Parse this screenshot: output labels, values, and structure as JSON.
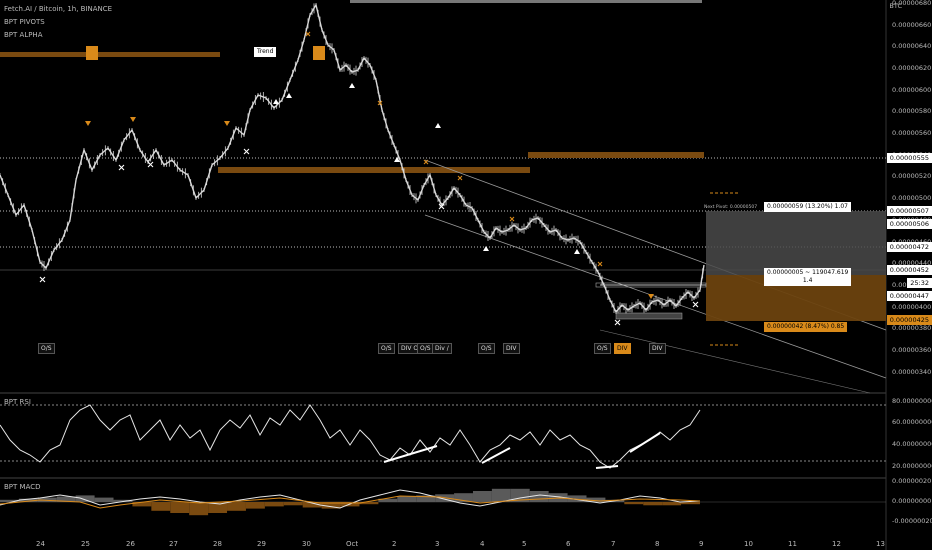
{
  "header": {
    "symbol": "Fetch.AI / Bitcoin, 1h, BINANCE",
    "indicator_1": "BPT PIVOTS",
    "indicator_2": "BPT ALPHA"
  },
  "price_axis": {
    "currency": "BTC",
    "labels": [
      "0.00000680",
      "0.00000660",
      "0.00000640",
      "0.00000620",
      "0.00000600",
      "0.00000580",
      "0.00000560",
      "0.00000540",
      "0.00000520",
      "0.00000500",
      "0.00000480",
      "0.00000460",
      "0.00000440",
      "0.00000420",
      "0.00000400",
      "0.00000380",
      "0.00000360",
      "0.00000340"
    ],
    "tags": [
      {
        "text": "0.00000555",
        "style": "white"
      },
      {
        "text": "0.00000507",
        "style": "white"
      },
      {
        "text": "0.00000506",
        "style": "white"
      },
      {
        "text": "0.00000472",
        "style": "white"
      },
      {
        "text": "0.00000452",
        "style": "white"
      },
      {
        "text": "25:32",
        "style": "white"
      },
      {
        "text": "0.00000447",
        "style": "white"
      },
      {
        "text": "0.00000425",
        "style": "orange"
      }
    ]
  },
  "notes": {
    "top_box": "0.00000059 (13.20%) 1.07",
    "mid_box_1": "0.00000005 ~ 119047.619",
    "mid_box_2": "1.4",
    "bottom_box": "0.00000042 (8.47%) 0.85",
    "trend_label": "Trend",
    "next_pivot": "Next Pivot: 0.00000507"
  },
  "signals": [
    "O/S",
    "O/S",
    "DIV O/S",
    "O/S",
    "Div /",
    "O/S",
    "DIV",
    "O/S",
    "DIV",
    "DIV"
  ],
  "x_axis": [
    "24",
    "25",
    "26",
    "27",
    "28",
    "29",
    "30",
    "Oct",
    "2",
    "3",
    "4",
    "5",
    "6",
    "7",
    "8",
    "9",
    "10",
    "11",
    "12",
    "13"
  ],
  "rsi": {
    "title": "BPT RSI",
    "labels": [
      "80.00000000",
      "60.00000000",
      "40.00000000",
      "20.00000000"
    ]
  },
  "macd": {
    "title": "BPT MACD",
    "labels": [
      "0.00000020",
      "0.00000000",
      "-0.00000020"
    ]
  },
  "colors": {
    "background": "#000000",
    "candle": "#d8d8d8",
    "orange": "#d98a1a",
    "zone_orange": "#7a4a10",
    "grey_zone": "#5a5a5a"
  }
}
